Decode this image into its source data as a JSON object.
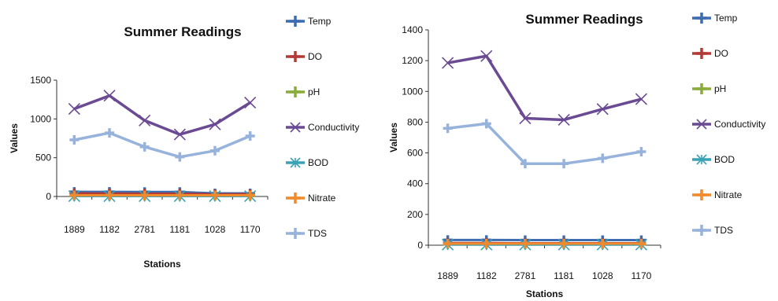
{
  "chart_data": [
    {
      "type": "line",
      "title": "Summer Readings",
      "xlabel": "Stations",
      "ylabel": "Values",
      "categories": [
        "1889",
        "1182",
        "2781",
        "1181",
        "1028",
        "1170"
      ],
      "ylim": [
        0,
        1500
      ],
      "yticks": [
        0,
        500,
        1000,
        1500
      ],
      "grid": false,
      "legend": "right",
      "series": [
        {
          "name": "Temp",
          "color": "#3d6db0",
          "marker": "plus",
          "values": [
            60,
            60,
            58,
            58,
            40,
            40
          ]
        },
        {
          "name": "DO",
          "color": "#b23a37",
          "marker": "plus",
          "values": [
            40,
            38,
            36,
            36,
            28,
            30
          ]
        },
        {
          "name": "pH",
          "color": "#8aac3c",
          "marker": "plus",
          "values": [
            8,
            8,
            8,
            8,
            8,
            8
          ]
        },
        {
          "name": "Conductivity",
          "color": "#6a4a93",
          "marker": "x",
          "values": [
            1130,
            1300,
            980,
            800,
            930,
            1210
          ]
        },
        {
          "name": "BOD",
          "color": "#3aa2b5",
          "marker": "star",
          "values": [
            5,
            5,
            5,
            5,
            5,
            5
          ]
        },
        {
          "name": "Nitrate",
          "color": "#f08a2c",
          "marker": "plus",
          "values": [
            15,
            15,
            15,
            15,
            15,
            15
          ]
        },
        {
          "name": "TDS",
          "color": "#97b3dc",
          "marker": "plus",
          "values": [
            730,
            820,
            640,
            510,
            590,
            780
          ]
        }
      ]
    },
    {
      "type": "line",
      "title": "Summer Readings",
      "xlabel": "Stations",
      "ylabel": "Values",
      "categories": [
        "1889",
        "1182",
        "2781",
        "1181",
        "1028",
        "1170"
      ],
      "ylim": [
        0,
        1400
      ],
      "yticks": [
        0,
        200,
        400,
        600,
        800,
        1000,
        1200,
        1400
      ],
      "grid": false,
      "legend": "right",
      "series": [
        {
          "name": "Temp",
          "color": "#3d6db0",
          "marker": "plus",
          "values": [
            34,
            34,
            33,
            33,
            33,
            33
          ]
        },
        {
          "name": "DO",
          "color": "#b23a37",
          "marker": "plus",
          "values": [
            14,
            14,
            13,
            13,
            13,
            13
          ]
        },
        {
          "name": "pH",
          "color": "#8aac3c",
          "marker": "plus",
          "values": [
            7,
            7,
            7,
            7,
            7,
            7
          ]
        },
        {
          "name": "Conductivity",
          "color": "#6a4a93",
          "marker": "x",
          "values": [
            1185,
            1230,
            825,
            815,
            885,
            950
          ]
        },
        {
          "name": "BOD",
          "color": "#3aa2b5",
          "marker": "star",
          "values": [
            4,
            4,
            4,
            4,
            4,
            4
          ]
        },
        {
          "name": "Nitrate",
          "color": "#f08a2c",
          "marker": "plus",
          "values": [
            10,
            10,
            10,
            10,
            10,
            10
          ]
        },
        {
          "name": "TDS",
          "color": "#97b3dc",
          "marker": "plus",
          "values": [
            760,
            790,
            530,
            530,
            565,
            608
          ]
        }
      ]
    }
  ]
}
